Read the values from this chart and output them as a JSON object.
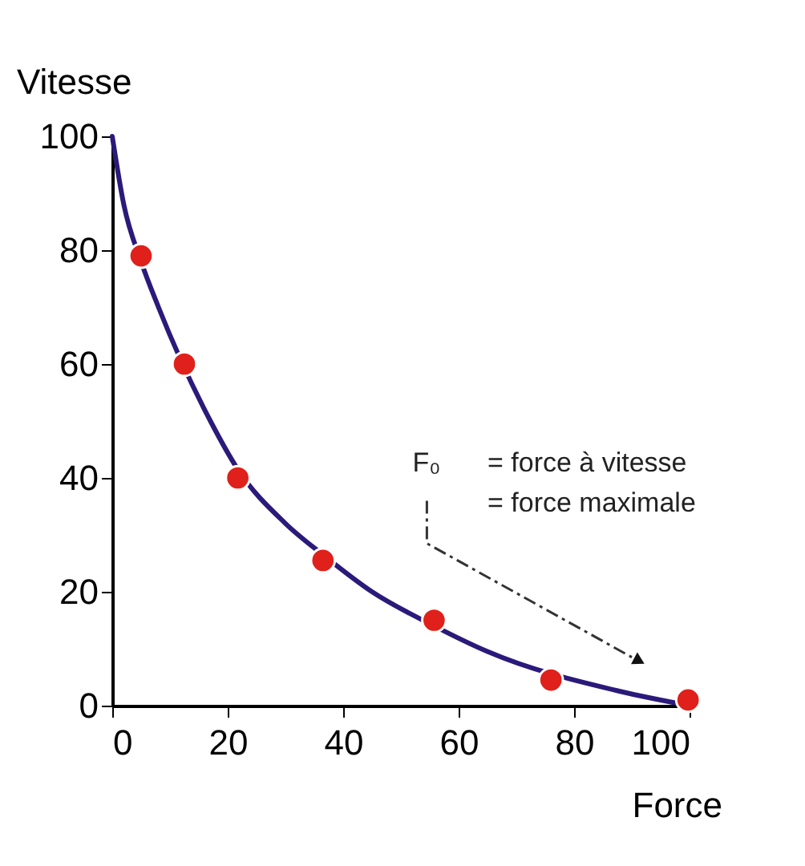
{
  "chart_data": {
    "type": "scatter",
    "xlabel": "Force",
    "ylabel": "Vitesse",
    "xlim": [
      0,
      100
    ],
    "xticks": [
      0,
      20,
      40,
      60,
      80,
      100
    ],
    "ylim": [
      0,
      100
    ],
    "yticks": [
      0,
      20,
      40,
      60,
      80,
      100
    ],
    "series": [
      {
        "type": "line",
        "color": "#2b1a7a",
        "line_style": "solid",
        "marker": "none",
        "x": [
          0,
          2,
          5,
          8,
          17,
          21.75,
          30,
          36.5,
          45,
          55.75,
          65,
          88,
          100
        ],
        "values": [
          100,
          88,
          78,
          70,
          50,
          41.5,
          32,
          26.5,
          20,
          14,
          9.5,
          2.5,
          0
        ]
      },
      {
        "color": "#e0201b",
        "marker": "circle",
        "x": [
          5,
          12.5,
          21.75,
          36.5,
          55.75,
          76,
          99.75
        ],
        "values": [
          79,
          60,
          40,
          25.5,
          15,
          4.5,
          1
        ]
      }
    ],
    "annotations": [
      "F₀",
      "= force à vitesse",
      "= force maximale"
    ]
  }
}
